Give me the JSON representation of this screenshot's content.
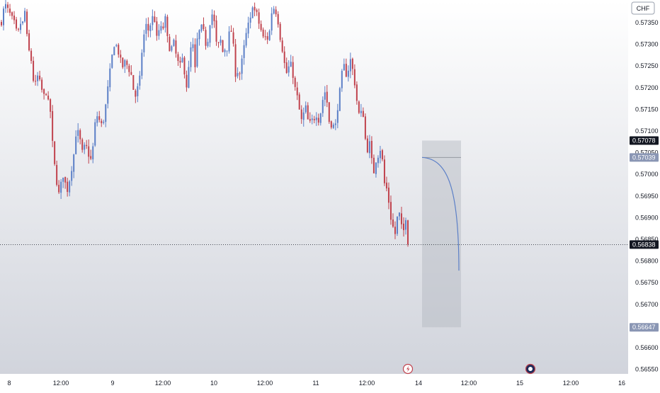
{
  "currency_button": "CHF",
  "colors": {
    "background_top": "#ffffff",
    "background_bottom": "#d1d4dc",
    "up": "#5b7fc7",
    "down": "#c0424d",
    "projection": "#5b7fc7",
    "tag_dark": "#131722",
    "tag_light": "#8a96b4"
  },
  "icons": {
    "event_marker_1": "lightning-icon",
    "event_marker_2": "flag-icon"
  },
  "chart_data": {
    "type": "candlestick",
    "title": "",
    "xlabel": "",
    "ylabel": "",
    "ylim": [
      0.5653,
      0.57385
    ],
    "y_ticks": [
      "0.57350",
      "0.57300",
      "0.57250",
      "0.57200",
      "0.57150",
      "0.57100",
      "0.57050",
      "0.57000",
      "0.56950",
      "0.56900",
      "0.56850",
      "0.56800",
      "0.56750",
      "0.56700",
      "0.56650",
      "0.56600",
      "0.56550"
    ],
    "x_ticks": [
      "8",
      "12:00",
      "9",
      "12:00",
      "10",
      "12:00",
      "11",
      "12:00",
      "14",
      "12:00",
      "15",
      "12:00",
      "16"
    ],
    "grid": false,
    "price_levels": [
      {
        "label": "0.57078",
        "value": 0.57078,
        "style": "dark"
      },
      {
        "label": "0.57039",
        "value": 0.57039,
        "style": "light"
      },
      {
        "label": "0.56838",
        "value": 0.56838,
        "style": "dark",
        "dotted_line": true
      },
      {
        "label": "0.56647",
        "value": 0.56647,
        "style": "light"
      }
    ],
    "forecast_box": {
      "y_top": 0.57078,
      "y_bottom": 0.56647,
      "entry": 0.57039,
      "end": 0.56778
    },
    "trajectory": [
      [
        0.5735,
        0.5738
      ],
      [
        0.5739,
        0.5738
      ],
      [
        0.5737,
        0.5736
      ],
      [
        0.5735,
        0.5733
      ],
      [
        0.5733,
        0.5735
      ],
      [
        0.5735,
        0.5738
      ],
      [
        0.5731,
        0.5728
      ],
      [
        0.5726,
        0.5721
      ],
      [
        0.5721,
        0.5723
      ],
      [
        0.5721,
        0.5719
      ],
      [
        0.5718,
        0.5719
      ],
      [
        0.5716,
        0.5714
      ],
      [
        0.5705,
        0.5701
      ],
      [
        0.5697,
        0.5695
      ],
      [
        0.5699,
        0.57
      ],
      [
        0.5697,
        0.5696
      ],
      [
        0.57,
        0.5702
      ],
      [
        0.5706,
        0.5711
      ],
      [
        0.5709,
        0.5707
      ],
      [
        0.5704,
        0.5708
      ],
      [
        0.5705,
        0.5704
      ],
      [
        0.5703,
        0.5709
      ],
      [
        0.5714,
        0.5713
      ],
      [
        0.5712,
        0.5711
      ],
      [
        0.5714,
        0.5718
      ],
      [
        0.5722,
        0.5726
      ],
      [
        0.5729,
        0.5731
      ],
      [
        0.5728,
        0.5728
      ],
      [
        0.5724,
        0.5726
      ],
      [
        0.5726,
        0.5724
      ],
      [
        0.5724,
        0.5721
      ],
      [
        0.5717,
        0.572
      ],
      [
        0.572,
        0.5727
      ],
      [
        0.5731,
        0.5735
      ],
      [
        0.5733,
        0.5734
      ],
      [
        0.5736,
        0.5737
      ],
      [
        0.5731,
        0.5733
      ],
      [
        0.5734,
        0.5733
      ],
      [
        0.5737,
        0.5732
      ],
      [
        0.5729,
        0.5729
      ],
      [
        0.5731,
        0.5728
      ],
      [
        0.5726,
        0.5725
      ],
      [
        0.5727,
        0.5724
      ],
      [
        0.572,
        0.5724
      ],
      [
        0.5729,
        0.573
      ],
      [
        0.5724,
        0.5731
      ],
      [
        0.5733,
        0.5734
      ],
      [
        0.5733,
        0.573
      ],
      [
        0.5731,
        0.5735
      ],
      [
        0.5737,
        0.5735
      ],
      [
        0.573,
        0.573
      ],
      [
        0.5731,
        0.5728
      ],
      [
        0.5729,
        0.5729
      ],
      [
        0.5733,
        0.5733
      ],
      [
        0.5729,
        0.5722
      ],
      [
        0.5724,
        0.5723
      ],
      [
        0.5727,
        0.573
      ],
      [
        0.5733,
        0.5735
      ],
      [
        0.5736,
        0.574
      ],
      [
        0.5737,
        0.5737
      ],
      [
        0.5734,
        0.5733
      ],
      [
        0.5731,
        0.5732
      ],
      [
        0.5731,
        0.5734
      ],
      [
        0.5739,
        0.5738
      ],
      [
        0.5737,
        0.5734
      ],
      [
        0.573,
        0.5728
      ],
      [
        0.5724,
        0.5723
      ],
      [
        0.5726,
        0.5725
      ],
      [
        0.5721,
        0.5719
      ],
      [
        0.5717,
        0.5713
      ],
      [
        0.5712,
        0.5716
      ],
      [
        0.5715,
        0.571
      ],
      [
        0.5714,
        0.5711
      ],
      [
        0.5715,
        0.5712
      ],
      [
        0.5713,
        0.5716
      ],
      [
        0.5719,
        0.5719
      ],
      [
        0.5713,
        0.5711
      ],
      [
        0.5712,
        0.571
      ],
      [
        0.5714,
        0.5718
      ],
      [
        0.5722,
        0.5726
      ],
      [
        0.5723,
        0.5723
      ],
      [
        0.5727,
        0.5725
      ],
      [
        0.5722,
        0.5718
      ],
      [
        0.5714,
        0.5714
      ],
      [
        0.5715,
        0.5709
      ],
      [
        0.5705,
        0.5708
      ],
      [
        0.5704,
        0.57
      ],
      [
        0.5703,
        0.5704
      ],
      [
        0.5706,
        0.5704
      ],
      [
        0.5698,
        0.5697
      ],
      [
        0.5694,
        0.569
      ],
      [
        0.5688,
        0.5686
      ],
      [
        0.569,
        0.5691
      ],
      [
        0.5688,
        0.5687
      ],
      [
        0.569,
        0.5686
      ]
    ]
  }
}
